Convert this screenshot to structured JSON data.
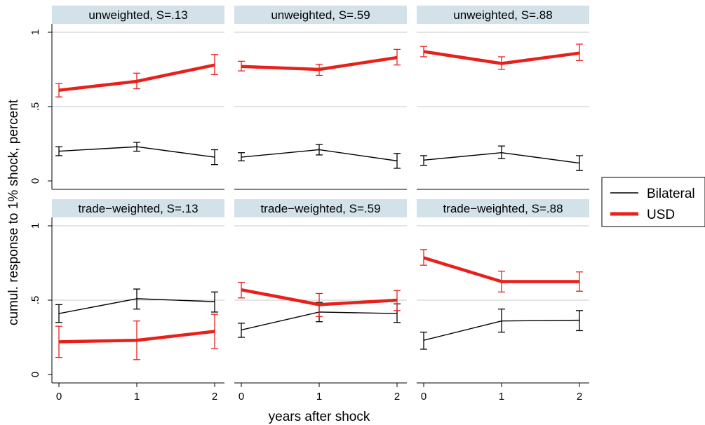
{
  "ylabel": "cumul. response to 1% shock, percent",
  "xlabel": "years after shock",
  "legend": [
    {
      "name": "Bilateral",
      "color": "#000000"
    },
    {
      "name": "USD",
      "color": "#e8201b"
    }
  ],
  "colors": {
    "bilateral": "#000000",
    "usd": "#e8201b",
    "strip": "#d3e2e9",
    "grid": "#c8c8c8"
  },
  "chart_data": {
    "type": "line",
    "layout": "2x3 facet grid with error bars",
    "x": [
      0,
      1,
      2
    ],
    "x_ticks": [
      "0",
      "1",
      "2"
    ],
    "y_ticks": [
      "0",
      ".5",
      "1"
    ],
    "ylim": [
      0,
      1
    ],
    "grid": true,
    "legend_position": "right",
    "panels": [
      {
        "title": "unweighted, S=.13",
        "series": [
          {
            "name": "Bilateral",
            "values": [
              0.2,
              0.23,
              0.16
            ],
            "ci_low": [
              0.17,
              0.2,
              0.11
            ],
            "ci_high": [
              0.23,
              0.26,
              0.21
            ]
          },
          {
            "name": "USD",
            "values": [
              0.61,
              0.67,
              0.78
            ],
            "ci_low": [
              0.565,
              0.62,
              0.715
            ],
            "ci_high": [
              0.655,
              0.725,
              0.85
            ]
          }
        ]
      },
      {
        "title": "unweighted, S=.59",
        "series": [
          {
            "name": "Bilateral",
            "values": [
              0.16,
              0.21,
              0.135
            ],
            "ci_low": [
              0.135,
              0.175,
              0.085
            ],
            "ci_high": [
              0.19,
              0.245,
              0.185
            ]
          },
          {
            "name": "USD",
            "values": [
              0.77,
              0.75,
              0.83
            ],
            "ci_low": [
              0.74,
              0.71,
              0.78
            ],
            "ci_high": [
              0.805,
              0.785,
              0.885
            ]
          }
        ]
      },
      {
        "title": "unweighted, S=.88",
        "series": [
          {
            "name": "Bilateral",
            "values": [
              0.14,
              0.19,
              0.12
            ],
            "ci_low": [
              0.105,
              0.15,
              0.07
            ],
            "ci_high": [
              0.17,
              0.235,
              0.17
            ]
          },
          {
            "name": "USD",
            "values": [
              0.87,
              0.79,
              0.86
            ],
            "ci_low": [
              0.835,
              0.75,
              0.81
            ],
            "ci_high": [
              0.905,
              0.835,
              0.92
            ]
          }
        ]
      },
      {
        "title": "trade−weighted, S=.13",
        "series": [
          {
            "name": "Bilateral",
            "values": [
              0.41,
              0.51,
              0.49
            ],
            "ci_low": [
              0.35,
              0.44,
              0.42
            ],
            "ci_high": [
              0.47,
              0.575,
              0.555
            ]
          },
          {
            "name": "USD",
            "values": [
              0.22,
              0.23,
              0.29
            ],
            "ci_low": [
              0.115,
              0.1,
              0.175
            ],
            "ci_high": [
              0.325,
              0.36,
              0.405
            ]
          }
        ]
      },
      {
        "title": "trade−weighted, S=.59",
        "series": [
          {
            "name": "Bilateral",
            "values": [
              0.3,
              0.42,
              0.41
            ],
            "ci_low": [
              0.25,
              0.355,
              0.35
            ],
            "ci_high": [
              0.345,
              0.485,
              0.475
            ]
          },
          {
            "name": "USD",
            "values": [
              0.57,
              0.47,
              0.5
            ],
            "ci_low": [
              0.515,
              0.39,
              0.43
            ],
            "ci_high": [
              0.62,
              0.545,
              0.565
            ]
          }
        ]
      },
      {
        "title": "trade−weighted, S=.88",
        "series": [
          {
            "name": "Bilateral",
            "values": [
              0.23,
              0.36,
              0.365
            ],
            "ci_low": [
              0.17,
              0.285,
              0.295
            ],
            "ci_high": [
              0.285,
              0.44,
              0.43
            ]
          },
          {
            "name": "USD",
            "values": [
              0.785,
              0.625,
              0.625
            ],
            "ci_low": [
              0.735,
              0.555,
              0.56
            ],
            "ci_high": [
              0.84,
              0.695,
              0.69
            ]
          }
        ]
      }
    ]
  }
}
